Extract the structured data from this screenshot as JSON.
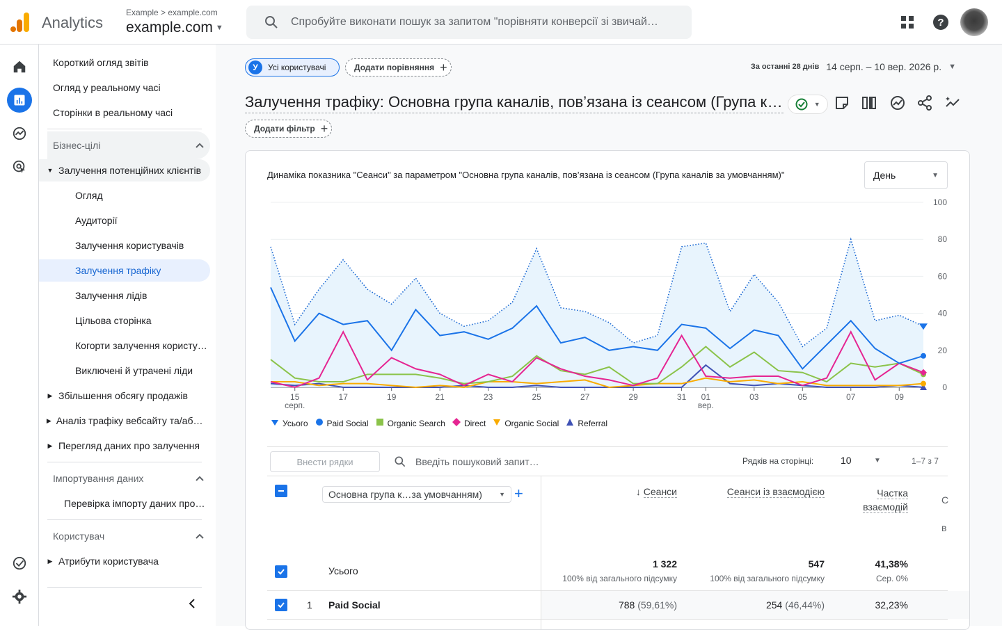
{
  "header": {
    "app_name": "Analytics",
    "account_crumb": "Example > example.com",
    "property_name": "example.com",
    "search_placeholder": "Спробуйте виконати пошук за запитом \"порівняти конверсії зі звичай…"
  },
  "nav": {
    "top_items": [
      "Короткий огляд звітів",
      "Огляд у реальному часі",
      "Сторінки в реальному часі"
    ],
    "section_business": "Бізнес-цілі",
    "group_open": "Залучення потенційних клієнтів",
    "sub_items": [
      "Огляд",
      "Аудиторії",
      "Залучення користувачів",
      "Залучення трафіку",
      "Залучення лідів",
      "Цільова сторінка",
      "Когорти залучення користувачів",
      "Виключені й утрачені ліди"
    ],
    "closed_groups": [
      "Збільшення обсягу продажів",
      "Аналіз трафіку вебсайту та/або додатка",
      "Перегляд даних про залучення"
    ],
    "section_import": "Імпортування даних",
    "import_item": "Перевірка імпорту даних про…",
    "section_user": "Користувач",
    "user_item": "Атрибути користувача"
  },
  "toolbar": {
    "segment_chip": "Усі користувачі",
    "segment_avatar": "У",
    "add_comparison": "Додати порівняння",
    "date_label": "За останні 28 днів",
    "date_value": "14 серп. – 10 вер. 2026 р.",
    "page_title": "Залучення трафіку: Основна група каналів, пов’язана із сеансом (Група каналів за умовчанням)",
    "add_filter": "Додати фільтр"
  },
  "chart_card": {
    "title": "Динаміка показника \"Сеанси\" за параметром \"Основна група каналів, пов’язана із сеансом (Група каналів за умовчанням)\"",
    "granularity": "День"
  },
  "chart_data": {
    "type": "line",
    "x": [
      "14",
      "15",
      "16",
      "17",
      "18",
      "19",
      "20",
      "21",
      "22",
      "23",
      "24",
      "25",
      "26",
      "27",
      "28",
      "29",
      "30",
      "31",
      "01",
      "02",
      "03",
      "04",
      "05",
      "06",
      "07",
      "08",
      "09",
      "10"
    ],
    "x_tick_labels": [
      "15",
      "17",
      "19",
      "21",
      "23",
      "25",
      "27",
      "29",
      "31",
      "01",
      "03",
      "05",
      "07",
      "09"
    ],
    "x_month_labels": [
      {
        "at": "15",
        "label": "серп."
      },
      {
        "at": "01",
        "label": "вер."
      }
    ],
    "ylim": [
      0,
      100
    ],
    "y_ticks": [
      0,
      20,
      40,
      60,
      80,
      100
    ],
    "series": [
      {
        "name": "Усього",
        "color": "#1a73e8",
        "style": "dotted-area",
        "values": [
          76,
          34,
          53,
          69,
          53,
          45,
          59,
          40,
          33,
          36,
          46,
          75,
          43,
          41,
          35,
          24,
          28,
          76,
          78,
          41,
          61,
          46,
          22,
          32,
          80,
          36,
          39,
          33
        ]
      },
      {
        "name": "Paid Social",
        "color": "#1a73e8",
        "values": [
          54,
          25,
          40,
          34,
          36,
          20,
          42,
          28,
          30,
          26,
          32,
          44,
          24,
          27,
          20,
          22,
          20,
          34,
          32,
          21,
          31,
          28,
          10,
          23,
          36,
          21,
          13,
          17
        ]
      },
      {
        "name": "Organic Search",
        "color": "#8bc34a",
        "values": [
          15,
          5,
          3,
          3,
          7,
          7,
          7,
          5,
          2,
          3,
          6,
          17,
          9,
          7,
          11,
          2,
          2,
          11,
          22,
          11,
          19,
          9,
          8,
          3,
          13,
          11,
          13,
          7
        ]
      },
      {
        "name": "Direct",
        "color": "#e52592",
        "values": [
          3,
          0,
          5,
          30,
          4,
          16,
          10,
          7,
          1,
          7,
          3,
          16,
          10,
          6,
          4,
          1,
          5,
          28,
          6,
          5,
          6,
          6,
          1,
          5,
          30,
          4,
          13,
          8
        ]
      },
      {
        "name": "Organic Social",
        "color": "#f9ab00",
        "values": [
          3,
          3,
          1,
          2,
          2,
          1,
          0,
          1,
          0,
          3,
          3,
          2,
          3,
          4,
          0,
          1,
          2,
          2,
          5,
          3,
          4,
          2,
          3,
          1,
          1,
          1,
          1,
          2
        ]
      },
      {
        "name": "Referral",
        "color": "#3f51b5",
        "values": [
          2,
          1,
          2,
          0,
          0,
          0,
          0,
          0,
          1,
          0,
          0,
          1,
          0,
          0,
          0,
          0,
          0,
          0,
          12,
          2,
          1,
          2,
          1,
          0,
          0,
          0,
          1,
          0
        ]
      }
    ]
  },
  "table": {
    "add_rows": "Внести рядки",
    "search_placeholder": "Введіть пошуковий запит…",
    "rows_per_page_label": "Рядків на сторінці:",
    "rows_per_page": "10",
    "range": "1–7 з 7",
    "dimension": "Основна група к…за умовчанням)",
    "columns": [
      "Сеанси",
      "Сеанси із взаємодією",
      "Частка",
      "взаємодій"
    ],
    "totals": {
      "label": "Усього",
      "sessions": "1 322",
      "engaged": "547",
      "rate": "41,38%",
      "sessions_sub": "100% від загального підсумку",
      "engaged_sub": "100% від загального підсумку",
      "rate_sub": "Сер. 0%"
    },
    "rows": [
      {
        "index": "1",
        "name": "Paid Social",
        "sessions": "788",
        "sessions_pct": "(59,61%)",
        "engaged": "254",
        "engaged_pct": "(46,44%)",
        "rate": "32,23%"
      }
    ]
  }
}
